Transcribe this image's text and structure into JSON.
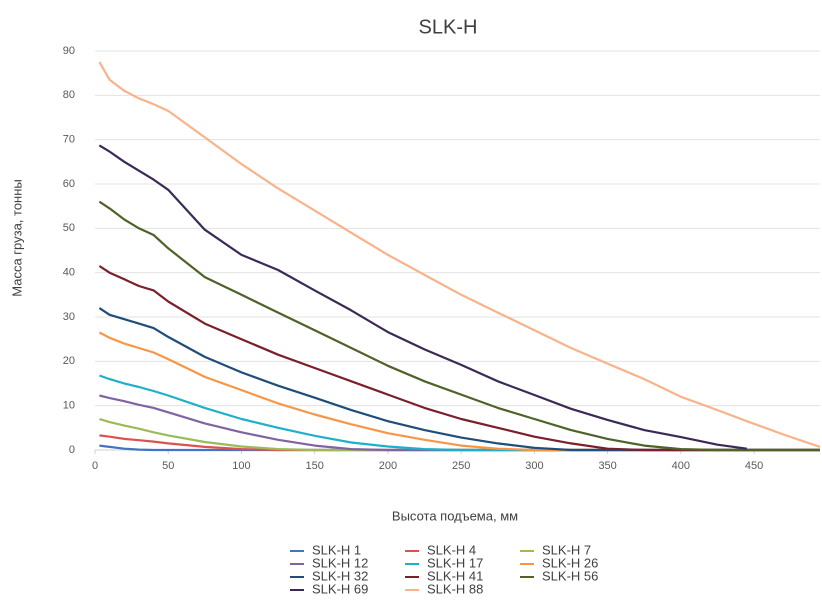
{
  "chart_data": {
    "type": "line",
    "title": "SLK-H",
    "x_label": "Высота подъема, мм",
    "y_label": "Масса груза, тонны",
    "x": [
      3,
      10,
      20,
      30,
      40,
      50,
      75,
      100,
      125,
      150,
      175,
      200,
      225,
      250,
      275,
      300,
      325,
      350,
      375,
      400,
      425,
      445,
      470,
      495
    ],
    "xlim": [
      0,
      495
    ],
    "xticks": [
      0,
      50,
      100,
      150,
      200,
      250,
      300,
      350,
      400,
      450
    ],
    "ylim": [
      0,
      90
    ],
    "yticks": [
      0,
      10,
      20,
      30,
      40,
      50,
      60,
      70,
      80,
      90
    ],
    "grid": true,
    "legend": "bottom",
    "series": [
      {
        "name": "SLK-H 1",
        "color": "#4472c4",
        "values": [
          1,
          0.7,
          0.3,
          0.1,
          0,
          0,
          0,
          0,
          0,
          0,
          0,
          0,
          0,
          0,
          0,
          0,
          0,
          0,
          0,
          0,
          0,
          0,
          0,
          0
        ]
      },
      {
        "name": "SLK-H 4",
        "color": "#d9534f",
        "values": [
          3.3,
          3,
          2.5,
          2.2,
          1.9,
          1.5,
          0.7,
          0.2,
          0,
          0,
          0,
          0,
          0,
          0,
          0,
          0,
          0,
          0,
          0,
          0,
          0,
          0,
          0,
          0
        ]
      },
      {
        "name": "SLK-H 7",
        "color": "#9bbb59",
        "values": [
          7,
          6.3,
          5.5,
          4.8,
          4,
          3.3,
          1.8,
          0.8,
          0.2,
          0,
          0,
          0,
          0,
          0,
          0,
          0,
          0,
          0,
          0,
          0,
          0,
          0,
          0,
          0
        ]
      },
      {
        "name": "SLK-H 12",
        "color": "#8064a2",
        "values": [
          12.3,
          11.7,
          11,
          10.2,
          9.5,
          8.5,
          6,
          4,
          2.3,
          1,
          0.2,
          0,
          0,
          0,
          0,
          0,
          0,
          0,
          0,
          0,
          0,
          0,
          0,
          0
        ]
      },
      {
        "name": "SLK-H 17",
        "color": "#1fb0c9",
        "values": [
          16.8,
          16,
          15,
          14.2,
          13.3,
          12.3,
          9.5,
          7,
          5,
          3.2,
          1.7,
          0.8,
          0.2,
          0,
          0,
          0,
          0,
          0,
          0,
          0,
          0,
          0,
          0,
          0
        ]
      },
      {
        "name": "SLK-H 26",
        "color": "#f79646",
        "values": [
          26.5,
          25.3,
          24,
          23,
          22,
          20.5,
          16.5,
          13.5,
          10.5,
          8,
          5.8,
          3.8,
          2.3,
          1,
          0.3,
          0,
          0,
          0,
          0,
          0,
          0,
          0,
          0,
          0
        ]
      },
      {
        "name": "SLK-H 32",
        "color": "#1f4e79",
        "values": [
          32,
          30.5,
          29.5,
          28.5,
          27.5,
          25.5,
          21,
          17.5,
          14.5,
          11.8,
          9,
          6.5,
          4.5,
          2.8,
          1.5,
          0.5,
          0,
          0,
          0,
          0,
          0,
          0,
          0,
          0
        ]
      },
      {
        "name": "SLK-H 41",
        "color": "#7b1f2a",
        "values": [
          41.5,
          40,
          38.5,
          37,
          36,
          33.5,
          28.5,
          25,
          21.5,
          18.5,
          15.5,
          12.5,
          9.5,
          7,
          5,
          3,
          1.5,
          0.3,
          0,
          0,
          0,
          0,
          0,
          0
        ]
      },
      {
        "name": "SLK-H 56",
        "color": "#4f6228",
        "values": [
          56,
          54.5,
          52,
          50,
          48.5,
          45.5,
          39,
          35,
          31,
          27,
          23,
          19,
          15.5,
          12.5,
          9.5,
          7,
          4.5,
          2.5,
          1,
          0.2,
          0,
          0,
          0,
          0
        ]
      },
      {
        "name": "SLK-H 69",
        "color": "#3b2a55",
        "values": [
          68.7,
          67.3,
          65,
          63,
          61,
          58.7,
          49.7,
          44,
          40.6,
          36,
          31.5,
          26.6,
          22.7,
          19.2,
          15.5,
          12.4,
          9.3,
          6.8,
          4.5,
          2.9,
          1.2,
          0.3,
          null,
          null
        ]
      },
      {
        "name": "SLK-H 88",
        "color": "#f9b38a",
        "values": [
          87.5,
          83.5,
          81,
          79.3,
          78,
          76.5,
          70.5,
          64.5,
          59,
          54,
          49,
          44,
          39.5,
          35,
          31,
          27,
          23,
          19.5,
          16,
          12,
          9,
          6.5,
          3.5,
          0.7
        ]
      }
    ]
  }
}
